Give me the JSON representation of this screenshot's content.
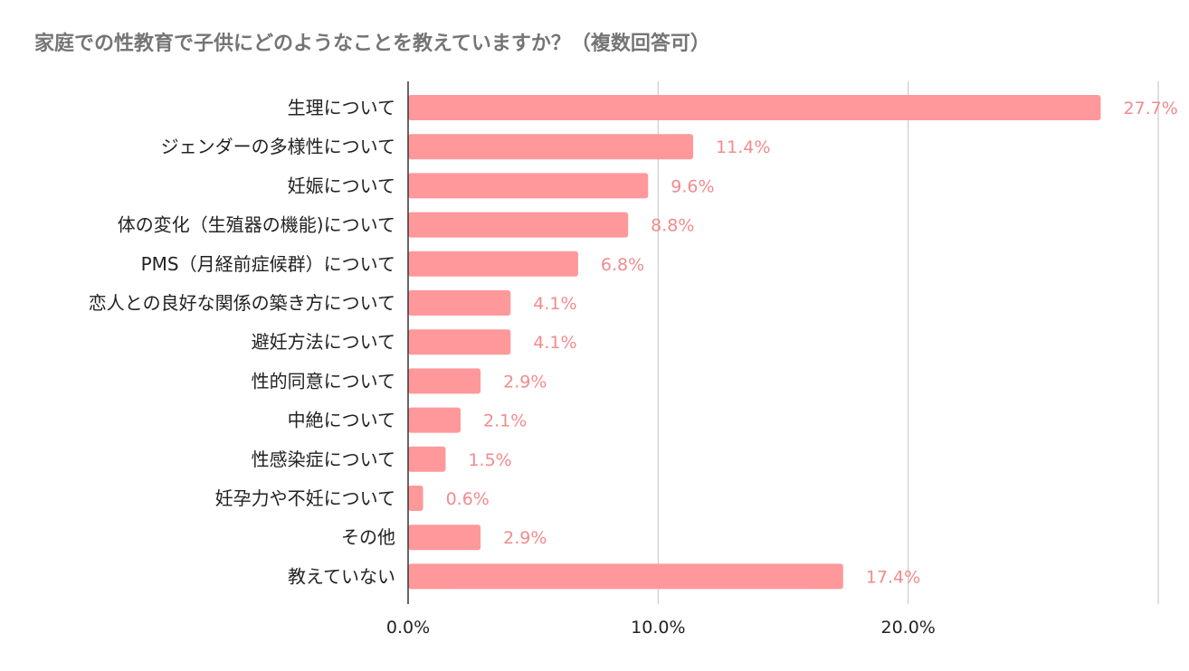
{
  "chart_data": {
    "type": "bar",
    "orientation": "horizontal",
    "title": "家庭での性教育で子供にどのようなことを教えていますか？（複数回答可）",
    "categories": [
      "生理について",
      "ジェンダーの多様性について",
      "妊娠について",
      "体の変化（生殖器の機能)について",
      "PMS（月経前症候群）について",
      "恋人との良好な関係の築き方について",
      "避妊方法について",
      "性的同意について",
      "中絶について",
      "性感染症について",
      "妊孕力や不妊について",
      "その他",
      "教えていない"
    ],
    "values": [
      27.7,
      11.4,
      9.6,
      8.8,
      6.8,
      4.1,
      4.1,
      2.9,
      2.1,
      1.5,
      0.6,
      2.9,
      17.4
    ],
    "value_labels": [
      "27.7%",
      "11.4%",
      "9.6%",
      "8.8%",
      "6.8%",
      "4.1%",
      "4.1%",
      "2.9%",
      "2.1%",
      "1.5%",
      "0.6%",
      "2.9%",
      "17.4%"
    ],
    "xlim": [
      0,
      30
    ],
    "ticks": [
      0,
      10,
      20,
      30
    ],
    "tick_labels": [
      "0.0%",
      "10.0%",
      "20.0%",
      ""
    ],
    "grid": true,
    "xlabel": "",
    "ylabel": "",
    "bar_color": "#ff989b",
    "value_label_color": "#f28b8e",
    "grid_color": "#cccccc",
    "axis_color": "#333333"
  }
}
